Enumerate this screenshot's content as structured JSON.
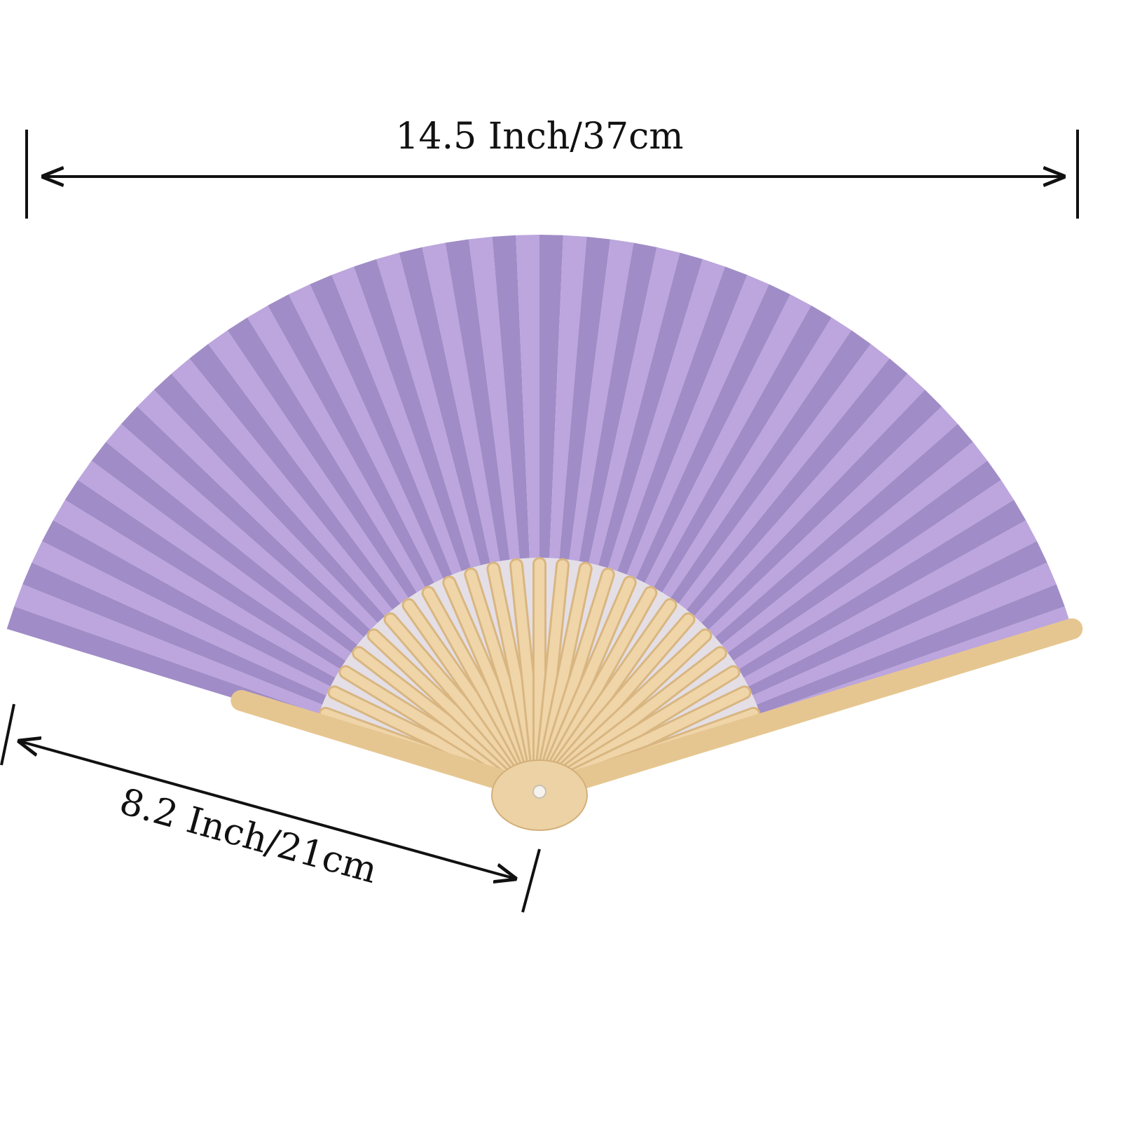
{
  "dimensions": {
    "width": "14.5 Inch/37cm",
    "length": "8.2 Inch/21cm"
  }
}
